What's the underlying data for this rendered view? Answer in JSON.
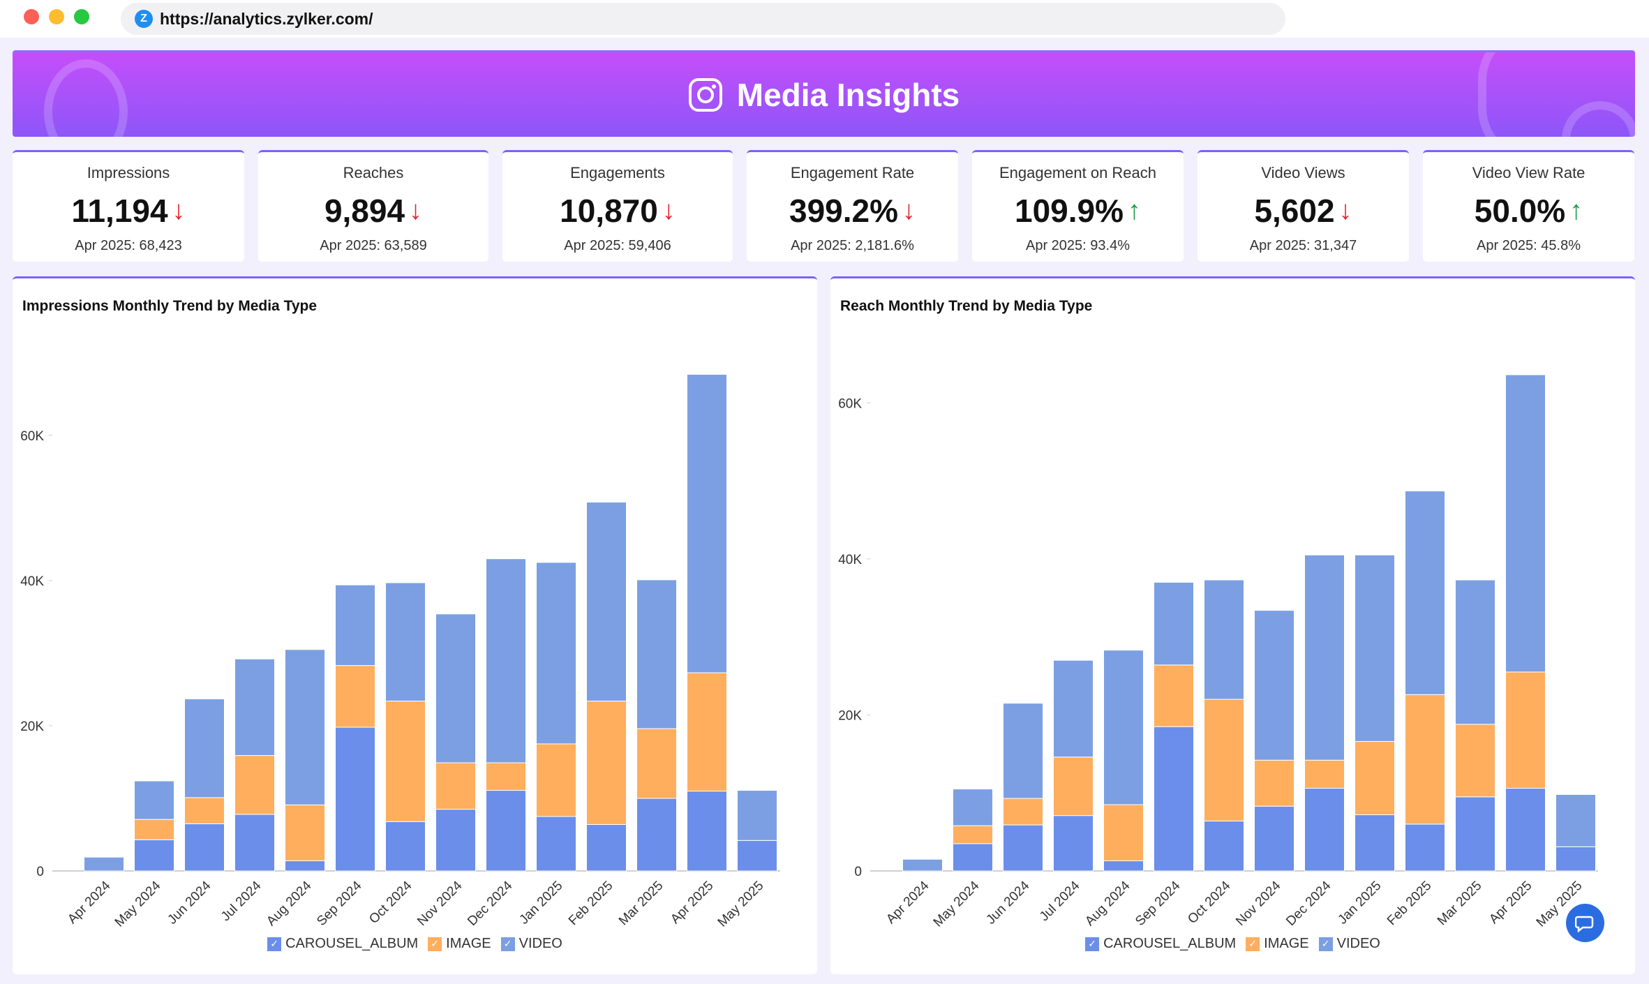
{
  "browser": {
    "url": "https://analytics.zylker.com/",
    "favicon_letter": "Z"
  },
  "banner": {
    "title": "Media Insights",
    "icon": "instagram-icon"
  },
  "kpis": [
    {
      "title": "Impressions",
      "value": "11,194",
      "trend": "down",
      "previous": "Apr 2025: 68,423"
    },
    {
      "title": "Reaches",
      "value": "9,894",
      "trend": "down",
      "previous": "Apr 2025: 63,589"
    },
    {
      "title": "Engagements",
      "value": "10,870",
      "trend": "down",
      "previous": "Apr 2025: 59,406"
    },
    {
      "title": "Engagement Rate",
      "value": "399.2%",
      "trend": "down",
      "previous": "Apr 2025: 2,181.6%"
    },
    {
      "title": "Engagement on Reach",
      "value": "109.9%",
      "trend": "up",
      "previous": "Apr 2025: 93.4%"
    },
    {
      "title": "Video Views",
      "value": "5,602",
      "trend": "down",
      "previous": "Apr 2025: 31,347"
    },
    {
      "title": "Video View Rate",
      "value": "50.0%",
      "trend": "up",
      "previous": "Apr 2025: 45.8%"
    }
  ],
  "colors": {
    "up": "#1a9e4b",
    "down": "#e5262b",
    "carousel": "#6b8eea",
    "image": "#ffae5e",
    "video": "#7b9fe2"
  },
  "chart_data": [
    {
      "type": "bar",
      "stacked": true,
      "title": "Impressions Monthly Trend by Media Type",
      "categories": [
        "Apr 2024",
        "May 2024",
        "Jun 2024",
        "Jul 2024",
        "Aug 2024",
        "Sep 2024",
        "Oct 2024",
        "Nov 2024",
        "Dec 2024",
        "Jan 2025",
        "Feb 2025",
        "Mar 2025",
        "Apr 2025",
        "May 2025"
      ],
      "yticks": [
        "0",
        "20K",
        "40K",
        "60K"
      ],
      "ylim": [
        0,
        72000
      ],
      "legend": "bottom",
      "series": [
        {
          "name": "CAROUSEL_ALBUM",
          "values": [
            0,
            4300,
            6500,
            7800,
            1400,
            19800,
            6800,
            8500,
            11100,
            7500,
            6400,
            10000,
            11000,
            4200
          ]
        },
        {
          "name": "IMAGE",
          "values": [
            0,
            2800,
            3600,
            8100,
            7700,
            8500,
            16600,
            6400,
            3800,
            10000,
            17000,
            9600,
            16300,
            0
          ]
        },
        {
          "name": "VIDEO",
          "values": [
            1900,
            5300,
            13600,
            13300,
            21400,
            11100,
            16300,
            20500,
            28100,
            25000,
            27400,
            20500,
            41100,
            6900
          ]
        }
      ]
    },
    {
      "type": "bar",
      "stacked": true,
      "title": "Reach Monthly Trend by Media Type",
      "categories": [
        "Apr 2024",
        "May 2024",
        "Jun 2024",
        "Jul 2024",
        "Aug 2024",
        "Sep 2024",
        "Oct 2024",
        "Nov 2024",
        "Dec 2024",
        "Jan 2025",
        "Feb 2025",
        "Mar 2025",
        "Apr 2025",
        "May 2025"
      ],
      "yticks": [
        "0",
        "20K",
        "40K",
        "60K"
      ],
      "ylim": [
        0,
        67000
      ],
      "legend": "bottom",
      "series": [
        {
          "name": "CAROUSEL_ALBUM",
          "values": [
            0,
            3500,
            5900,
            7100,
            1300,
            18500,
            6400,
            8300,
            10600,
            7200,
            6000,
            9500,
            10600,
            3100
          ]
        },
        {
          "name": "IMAGE",
          "values": [
            0,
            2300,
            3400,
            7500,
            7200,
            7900,
            15600,
            5900,
            3600,
            9400,
            16600,
            9300,
            14900,
            0
          ]
        },
        {
          "name": "VIDEO",
          "values": [
            1500,
            4700,
            12200,
            12400,
            19800,
            10600,
            15300,
            19200,
            26300,
            23900,
            26100,
            18500,
            38100,
            6700
          ]
        }
      ]
    }
  ]
}
